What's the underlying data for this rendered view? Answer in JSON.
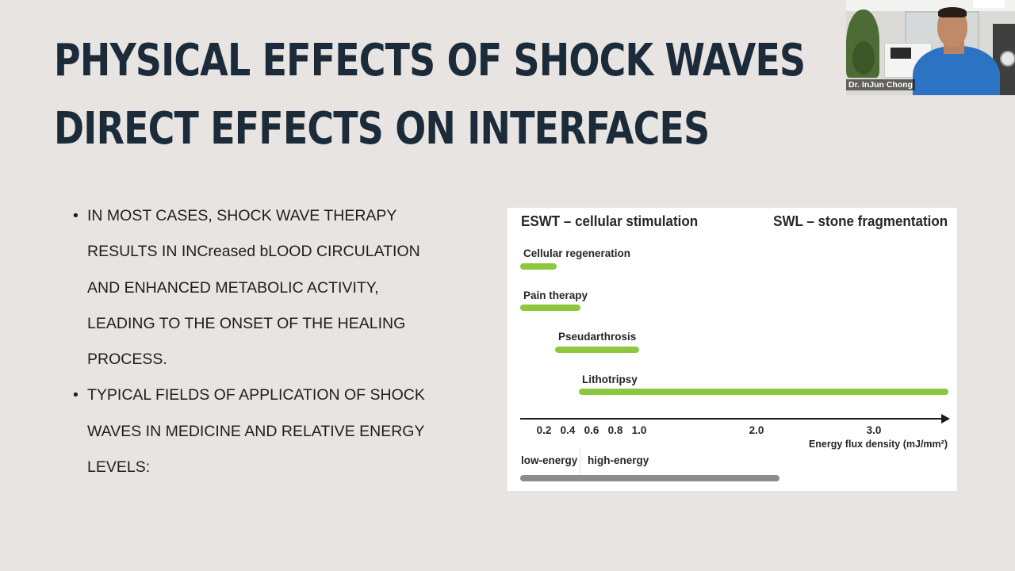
{
  "slide": {
    "title_line1": "PHYSICAL EFFECTS OF SHOCK WAVES",
    "title_line2": "DIRECT EFFECTS ON INTERFACES",
    "bullet_symbol": "•",
    "bullets": [
      {
        "lines": [
          "IN MOST CASES, SHOCK WAVE THERAPY",
          "RESULTS IN INCreased bLOOD CIRCULATION",
          "AND ENHANCED METABOLIC ACTIVITY,",
          "LEADING TO THE ONSET OF THE HEALING",
          "PROCESS."
        ]
      },
      {
        "lines": [
          "TYPICAL FIELDS OF APPLICATION OF SHOCK",
          "WAVES IN MEDICINE AND RELATIVE ENERGY",
          "LEVELS:"
        ]
      }
    ]
  },
  "figure": {
    "left_heading": "ESWT – cellular stimulation",
    "right_heading": "SWL – stone fragmentation",
    "axis_title": "Energy flux density (mJ/mm²)",
    "ticks": [
      "0.2",
      "0.4",
      "0.6",
      "0.8",
      "1.0",
      "2.0",
      "3.0"
    ],
    "applications": [
      {
        "label": "Cellular regeneration",
        "start": 0.1,
        "end": 0.4
      },
      {
        "label": "Pain therapy",
        "start": 0.1,
        "end": 0.6
      },
      {
        "label": "Pseudarthrosis",
        "start": 0.4,
        "end": 1.0
      },
      {
        "label": "Lithotripsy",
        "start": 0.6,
        "end": "3.6+"
      }
    ],
    "low_energy_label": "low-energy",
    "high_energy_label": "high-energy",
    "energy_boundary": 0.5,
    "energy_range_end": 2.2,
    "colors": {
      "application_bar": "#8dc63f",
      "energy_bar": "#8c8c8c"
    }
  },
  "video_tile": {
    "participant_name": "Dr. InJun Chong"
  },
  "colors": {
    "background": "#e8e4e2",
    "title": "#1c2b3a",
    "text": "#1e1e1e"
  }
}
